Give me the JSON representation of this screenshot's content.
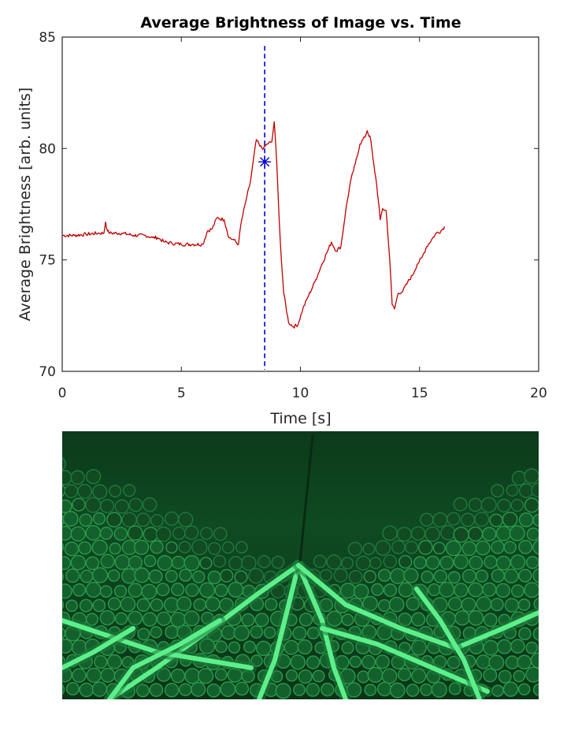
{
  "chart_data": {
    "type": "line",
    "title": "Average Brightness of Image vs. Time",
    "xlabel": "Time [s]",
    "ylabel": "Average Brightness [arb. units]",
    "xlim": [
      0,
      20
    ],
    "ylim": [
      70,
      85
    ],
    "xticks": [
      0,
      5,
      10,
      15,
      20
    ],
    "yticks": [
      70,
      75,
      80,
      85
    ],
    "grid": false,
    "series": [
      {
        "color": "#c00000",
        "x": [
          0,
          0.5,
          1.0,
          1.5,
          1.75,
          1.82,
          1.9,
          2.0,
          2.5,
          3.0,
          3.5,
          3.8,
          4.0,
          4.3,
          4.6,
          5.0,
          5.5,
          5.9,
          6.1,
          6.3,
          6.5,
          6.8,
          7.0,
          7.2,
          7.4,
          7.5,
          7.7,
          7.9,
          8.0,
          8.15,
          8.3,
          8.45,
          8.6,
          8.8,
          8.9,
          9.0,
          9.1,
          9.2,
          9.3,
          9.5,
          9.7,
          9.9,
          10.1,
          10.3,
          10.6,
          10.9,
          11.1,
          11.3,
          11.5,
          11.7,
          11.9,
          12.1,
          12.3,
          12.5,
          12.7,
          12.8,
          12.95,
          13.05,
          13.2,
          13.35,
          13.45,
          13.6,
          13.75,
          13.85,
          13.95,
          14.1,
          14.3,
          14.5,
          14.7,
          14.9,
          15.1,
          15.3,
          15.5,
          15.7,
          15.9,
          16.05
        ],
        "values": [
          76.1,
          76.1,
          76.15,
          76.2,
          76.2,
          76.7,
          76.3,
          76.2,
          76.2,
          76.1,
          76.1,
          76.0,
          76.0,
          75.8,
          75.75,
          75.7,
          75.7,
          75.7,
          76.3,
          76.4,
          76.9,
          76.8,
          76.0,
          75.9,
          75.7,
          76.6,
          77.6,
          78.5,
          79.3,
          80.4,
          80.1,
          80.0,
          80.2,
          80.3,
          81.2,
          79.5,
          77.0,
          75.0,
          73.5,
          72.2,
          72.0,
          72.1,
          72.8,
          73.3,
          74.0,
          74.8,
          75.3,
          75.8,
          75.4,
          75.6,
          77.2,
          78.5,
          79.3,
          80.2,
          80.5,
          80.8,
          80.4,
          79.5,
          78.4,
          76.8,
          77.3,
          77.2,
          75.0,
          73.0,
          72.8,
          73.5,
          73.6,
          74.0,
          74.3,
          74.8,
          75.1,
          75.6,
          75.9,
          76.2,
          76.3,
          76.5
        ]
      }
    ],
    "marker_line": {
      "x": 8.5,
      "color": "#0000cc",
      "style": "dashed"
    },
    "marker_point": {
      "x": 8.5,
      "y": 79.4,
      "color": "#0000cc",
      "symbol": "asterisk"
    }
  },
  "photo": {
    "subject": "green-lit-granular-photoelastic-discs",
    "colors": {
      "bg": "#0b3a1a",
      "mid": "#1f7a3c",
      "bright": "#5cf08a"
    }
  }
}
